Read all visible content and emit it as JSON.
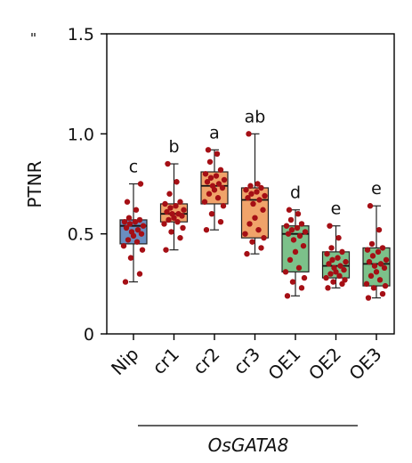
{
  "chart_data": {
    "type": "box",
    "ylabel": "PTNR",
    "ylim": [
      0,
      1.5
    ],
    "yticks": [
      0,
      0.5,
      1.0,
      1.5
    ],
    "ytick_labels": [
      "0",
      "0.5",
      "1.0",
      "1.5"
    ],
    "categories": [
      "Nip",
      "cr1",
      "cr2",
      "cr3",
      "OE1",
      "OE2",
      "OE3"
    ],
    "group_label": "OsGATA8",
    "group_span": [
      "cr1",
      "OE3"
    ],
    "significance": [
      "c",
      "b",
      "a",
      "ab",
      "d",
      "e",
      "e"
    ],
    "colors": {
      "Nip": "#6a8ec0",
      "cr": "#f0a36a",
      "OE": "#7cc18a",
      "points": "#a50f15"
    },
    "boxes": [
      {
        "name": "Nip",
        "min": 0.26,
        "q1": 0.45,
        "median": 0.54,
        "q3": 0.57,
        "max": 0.75
      },
      {
        "name": "cr1",
        "min": 0.42,
        "q1": 0.56,
        "median": 0.6,
        "q3": 0.65,
        "max": 0.85
      },
      {
        "name": "cr2",
        "min": 0.52,
        "q1": 0.65,
        "median": 0.74,
        "q3": 0.81,
        "max": 0.92
      },
      {
        "name": "cr3",
        "min": 0.4,
        "q1": 0.48,
        "median": 0.67,
        "q3": 0.73,
        "max": 1.0
      },
      {
        "name": "OE1",
        "min": 0.19,
        "q1": 0.31,
        "median": 0.5,
        "q3": 0.54,
        "max": 0.62
      },
      {
        "name": "OE2",
        "min": 0.23,
        "q1": 0.28,
        "median": 0.34,
        "q3": 0.41,
        "max": 0.54
      },
      {
        "name": "OE3",
        "min": 0.18,
        "q1": 0.24,
        "median": 0.35,
        "q3": 0.43,
        "max": 0.64
      }
    ],
    "points": [
      [
        0.26,
        0.3,
        0.38,
        0.42,
        0.44,
        0.46,
        0.47,
        0.49,
        0.5,
        0.51,
        0.52,
        0.53,
        0.54,
        0.55,
        0.56,
        0.56,
        0.57,
        0.58,
        0.62,
        0.66,
        0.75
      ],
      [
        0.42,
        0.48,
        0.51,
        0.53,
        0.55,
        0.56,
        0.57,
        0.58,
        0.59,
        0.6,
        0.6,
        0.61,
        0.62,
        0.63,
        0.64,
        0.65,
        0.66,
        0.7,
        0.76,
        0.85
      ],
      [
        0.52,
        0.56,
        0.6,
        0.64,
        0.66,
        0.68,
        0.7,
        0.72,
        0.73,
        0.74,
        0.75,
        0.76,
        0.77,
        0.78,
        0.79,
        0.8,
        0.82,
        0.86,
        0.9,
        0.92
      ],
      [
        0.4,
        0.43,
        0.46,
        0.48,
        0.5,
        0.52,
        0.55,
        0.58,
        0.62,
        0.65,
        0.67,
        0.68,
        0.69,
        0.7,
        0.71,
        0.72,
        0.73,
        0.74,
        0.75,
        1.0
      ],
      [
        0.19,
        0.23,
        0.26,
        0.28,
        0.31,
        0.33,
        0.37,
        0.41,
        0.44,
        0.47,
        0.49,
        0.5,
        0.51,
        0.52,
        0.53,
        0.54,
        0.55,
        0.57,
        0.6,
        0.62
      ],
      [
        0.23,
        0.25,
        0.26,
        0.27,
        0.28,
        0.29,
        0.3,
        0.31,
        0.32,
        0.33,
        0.34,
        0.35,
        0.36,
        0.37,
        0.38,
        0.4,
        0.41,
        0.43,
        0.48,
        0.54
      ],
      [
        0.18,
        0.2,
        0.23,
        0.24,
        0.25,
        0.27,
        0.29,
        0.31,
        0.33,
        0.34,
        0.35,
        0.36,
        0.37,
        0.39,
        0.41,
        0.42,
        0.43,
        0.45,
        0.52,
        0.64
      ]
    ]
  }
}
